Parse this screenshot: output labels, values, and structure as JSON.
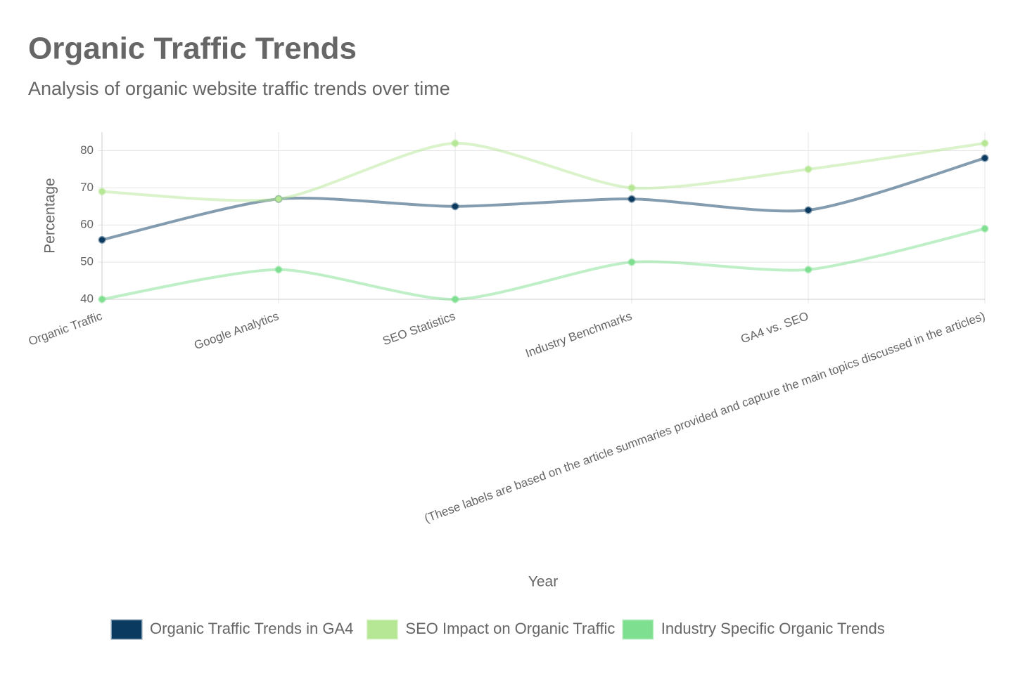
{
  "chart_data": {
    "type": "line",
    "title": "Organic Traffic Trends",
    "subtitle": "Analysis of organic website traffic trends over time",
    "x_label": "Year",
    "y_label": "Percentage",
    "categories": [
      "Organic Traffic",
      "Google Analytics",
      "SEO Statistics",
      "Industry Benchmarks",
      "GA4 vs. SEO",
      "(These labels are based on the article summaries provided and capture the main topics discussed in the articles)"
    ],
    "series": [
      {
        "name": "Organic Traffic Trends in GA4",
        "color": "#0a3a5f",
        "values": [
          56,
          67,
          65,
          67,
          64,
          78
        ]
      },
      {
        "name": "SEO Impact on Organic Traffic",
        "color": "#b6e795",
        "values": [
          69,
          67,
          82,
          70,
          75,
          82
        ]
      },
      {
        "name": "Industry Specific Organic Trends",
        "color": "#7ddf8f",
        "values": [
          40,
          48,
          40,
          50,
          48,
          59
        ]
      }
    ],
    "ylim": [
      40,
      85
    ],
    "yticks": [
      40,
      50,
      60,
      70,
      80
    ],
    "grid": true,
    "legend": "bottom"
  }
}
